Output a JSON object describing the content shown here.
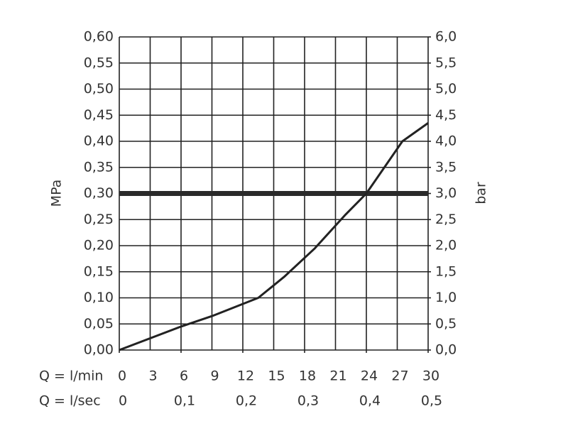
{
  "chart_data": {
    "type": "line",
    "ylabel": "MPa",
    "y2label": "bar",
    "xlabel": "Q = l/min",
    "x2label": "Q = l/sec",
    "x": [
      0,
      6,
      9,
      13.5,
      16,
      19,
      22,
      24,
      27.5,
      30
    ],
    "values": [
      0,
      0.045,
      0.065,
      0.1,
      0.14,
      0.195,
      0.26,
      0.3,
      0.4,
      0.435
    ],
    "color": "#222222",
    "reference_line": 0.3,
    "xlim": [
      0,
      30
    ],
    "xticks": [
      0,
      3,
      6,
      9,
      12,
      15,
      18,
      21,
      24,
      27,
      30
    ],
    "x2lim": [
      0,
      0.5
    ],
    "x2ticks": [
      0,
      {
        "value": 0.1,
        "label": "0,1"
      },
      {
        "value": 0.2,
        "label": "0,2"
      },
      {
        "value": 0.3,
        "label": "0,3"
      },
      {
        "value": 0.4,
        "label": "0,4"
      },
      {
        "value": 0.5,
        "label": "0,5"
      }
    ],
    "ylim": [
      0,
      0.6
    ],
    "yticks": [
      {
        "value": 0,
        "label": "0,00"
      },
      {
        "value": 0.05,
        "label": "0,05"
      },
      {
        "value": 0.1,
        "label": "0,10"
      },
      {
        "value": 0.15,
        "label": "0,15"
      },
      {
        "value": 0.2,
        "label": "0,20"
      },
      {
        "value": 0.25,
        "label": "0,25"
      },
      {
        "value": 0.3,
        "label": "0,30"
      },
      {
        "value": 0.35,
        "label": "0,35"
      },
      {
        "value": 0.4,
        "label": "0,40"
      },
      {
        "value": 0.45,
        "label": "0,45"
      },
      {
        "value": 0.5,
        "label": "0,50"
      },
      {
        "value": 0.55,
        "label": "0,55"
      },
      {
        "value": 0.6,
        "label": "0,60"
      }
    ],
    "y2lim": [
      0,
      6
    ],
    "y2ticks": [
      {
        "value": 0,
        "label": "0,0"
      },
      {
        "value": 0.5,
        "label": "0,5"
      },
      {
        "value": 1,
        "label": "1,0"
      },
      {
        "value": 1.5,
        "label": "1,5"
      },
      {
        "value": 2,
        "label": "2,0"
      },
      {
        "value": 2.5,
        "label": "2,5"
      },
      {
        "value": 3,
        "label": "3,0"
      },
      {
        "value": 3.5,
        "label": "3,5"
      },
      {
        "value": 4,
        "label": "4,0"
      },
      {
        "value": 4.5,
        "label": "4,5"
      },
      {
        "value": 5,
        "label": "5,0"
      },
      {
        "value": 5.5,
        "label": "5,5"
      },
      {
        "value": 6,
        "label": "6,0"
      }
    ],
    "grid": true
  }
}
